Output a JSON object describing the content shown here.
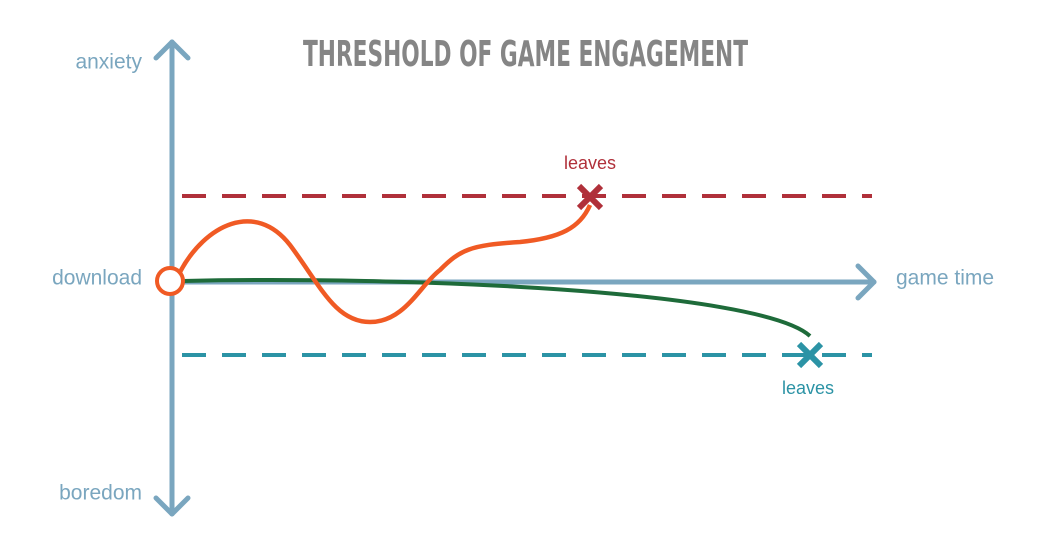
{
  "title": "THRESHOLD OF GAME ENGAGEMENT",
  "axes": {
    "top": "anxiety",
    "bottom": "boredom",
    "origin": "download",
    "x": "game time"
  },
  "markers": [
    {
      "label": "leaves"
    },
    {
      "label": "leaves"
    }
  ]
}
